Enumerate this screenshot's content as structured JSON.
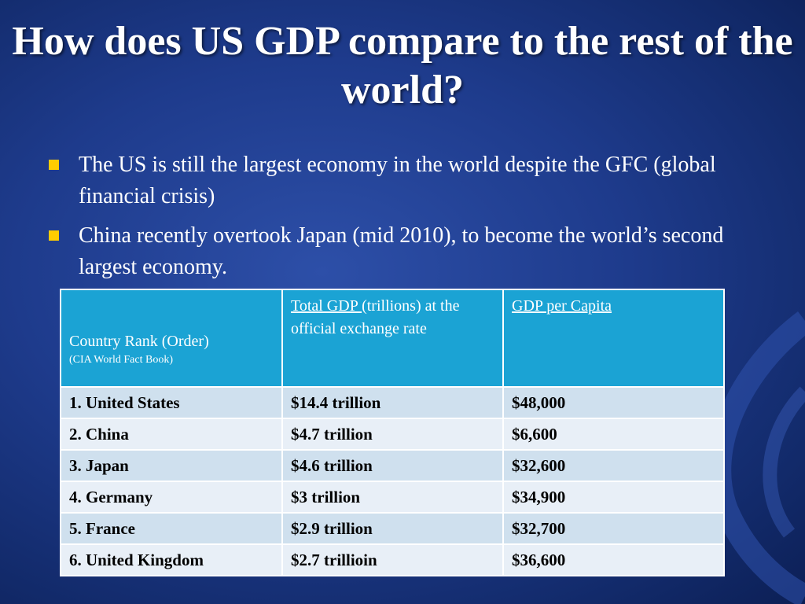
{
  "title": "How does US GDP compare to the rest of the world?",
  "bullets": [
    "The US is still the largest economy in the world despite the GFC (global financial crisis)",
    "China recently overtook Japan (mid 2010), to become the world’s second largest economy."
  ],
  "table": {
    "header": {
      "col1_main": "Country Rank (Order)",
      "col1_sub": "(CIA World Fact Book)",
      "col2_underlined": "Total  GDP ",
      "col2_rest": "(trillions) at  the official exchange rate",
      "col3": "GDP per Capita"
    },
    "rows": [
      {
        "country": "1.   United States",
        "gdp": "$14.4 trillion",
        "per_capita": "$48,000"
      },
      {
        "country": "2.   China",
        "gdp": "$4.7 trillion",
        "per_capita": "$6,600"
      },
      {
        "country": "3.   Japan",
        "gdp": "$4.6 trillion",
        "per_capita": "$32,600"
      },
      {
        "country": "4.   Germany",
        "gdp": "$3 trillion",
        "per_capita": "$34,900"
      },
      {
        "country": "5.    France",
        "gdp": "$2.9 trillion",
        "per_capita": "$32,700"
      },
      {
        "country": "6.   United Kingdom",
        "gdp": "$2.7 trillioin",
        "per_capita": "$36,600"
      }
    ]
  },
  "colors": {
    "background": "#1e3b8c",
    "bullet": "#ffcc00",
    "header": "#1ba3d4",
    "row_light": "#cfe0ee",
    "row_lighter": "#e8eff7"
  }
}
